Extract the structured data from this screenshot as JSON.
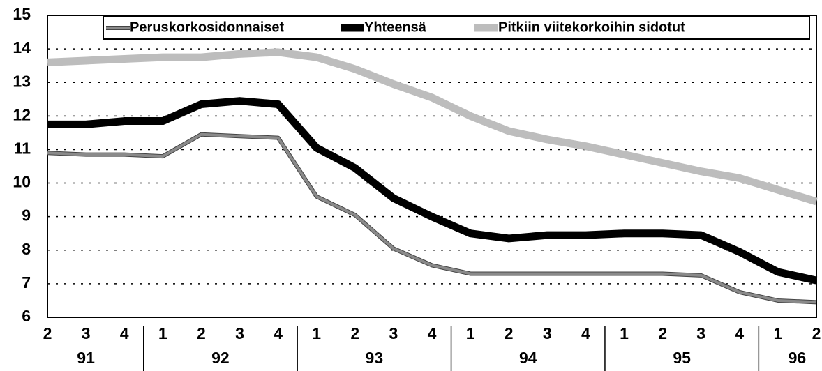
{
  "chart_data": {
    "type": "line",
    "categories": [
      "2",
      "3",
      "4",
      "1",
      "2",
      "3",
      "4",
      "1",
      "2",
      "3",
      "4",
      "1",
      "2",
      "3",
      "4",
      "1",
      "2",
      "3",
      "4",
      "1",
      "2"
    ],
    "years": [
      "91",
      "92",
      "93",
      "94",
      "95",
      "96"
    ],
    "series": [
      {
        "name": "Peruskorkosidonnaiset",
        "color": "#8a8a8a",
        "width": 4,
        "values": [
          10.9,
          10.85,
          10.85,
          10.8,
          11.45,
          11.4,
          11.35,
          9.6,
          9.05,
          8.05,
          7.55,
          7.3,
          7.3,
          7.3,
          7.3,
          7.3,
          7.3,
          7.25,
          6.75,
          6.5,
          6.45
        ]
      },
      {
        "name": "Yhteensä",
        "color": "#000000",
        "width": 11,
        "values": [
          11.75,
          11.75,
          11.85,
          11.85,
          12.35,
          12.45,
          12.35,
          11.05,
          10.45,
          9.55,
          9.0,
          8.5,
          8.35,
          8.45,
          8.45,
          8.5,
          8.5,
          8.45,
          7.95,
          7.35,
          7.1
        ]
      },
      {
        "name": "Pitkiin viitekorkoihin sidotut",
        "color": "#bdbdbd",
        "width": 11,
        "values": [
          13.6,
          13.65,
          13.7,
          13.75,
          13.75,
          13.85,
          13.9,
          13.75,
          13.4,
          12.95,
          12.55,
          12.0,
          11.55,
          11.3,
          11.1,
          10.85,
          10.6,
          10.35,
          10.15,
          9.8,
          9.45
        ]
      }
    ],
    "ylim": [
      6,
      15
    ],
    "yticks": [
      6,
      7,
      8,
      9,
      10,
      11,
      12,
      13,
      14,
      15
    ],
    "grid": true,
    "legend": "top"
  }
}
